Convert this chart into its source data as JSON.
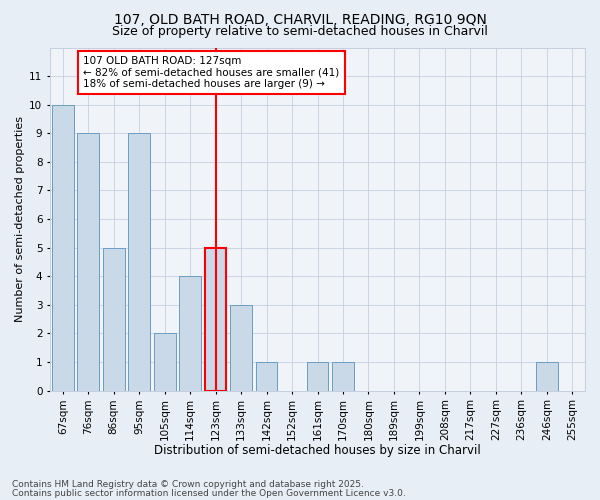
{
  "title1": "107, OLD BATH ROAD, CHARVIL, READING, RG10 9QN",
  "title2": "Size of property relative to semi-detached houses in Charvil",
  "xlabel": "Distribution of semi-detached houses by size in Charvil",
  "ylabel": "Number of semi-detached properties",
  "categories": [
    "67sqm",
    "76sqm",
    "86sqm",
    "95sqm",
    "105sqm",
    "114sqm",
    "123sqm",
    "133sqm",
    "142sqm",
    "152sqm",
    "161sqm",
    "170sqm",
    "180sqm",
    "189sqm",
    "199sqm",
    "208sqm",
    "217sqm",
    "227sqm",
    "236sqm",
    "246sqm",
    "255sqm"
  ],
  "values": [
    10,
    9,
    5,
    9,
    2,
    4,
    5,
    3,
    1,
    0,
    1,
    1,
    0,
    0,
    0,
    0,
    0,
    0,
    0,
    1,
    0
  ],
  "bar_color": "#c9d9e8",
  "bar_edge_color": "#6b9dc2",
  "highlight_bar_index": 6,
  "highlight_edge_color": "red",
  "vline_color": "red",
  "annotation_text": "107 OLD BATH ROAD: 127sqm\n← 82% of semi-detached houses are smaller (41)\n18% of semi-detached houses are larger (9) →",
  "annotation_box_color": "white",
  "annotation_box_edge": "red",
  "ylim": [
    0,
    12
  ],
  "yticks": [
    0,
    1,
    2,
    3,
    4,
    5,
    6,
    7,
    8,
    9,
    10,
    11,
    12
  ],
  "footer1": "Contains HM Land Registry data © Crown copyright and database right 2025.",
  "footer2": "Contains public sector information licensed under the Open Government Licence v3.0.",
  "bg_color": "#e8eef5",
  "plot_bg_color": "#f0f4f9",
  "grid_color": "#c5cfe0",
  "title1_fontsize": 10,
  "title2_fontsize": 9,
  "xlabel_fontsize": 8.5,
  "ylabel_fontsize": 8,
  "tick_fontsize": 7.5,
  "footer_fontsize": 6.5,
  "annotation_fontsize": 7.5
}
